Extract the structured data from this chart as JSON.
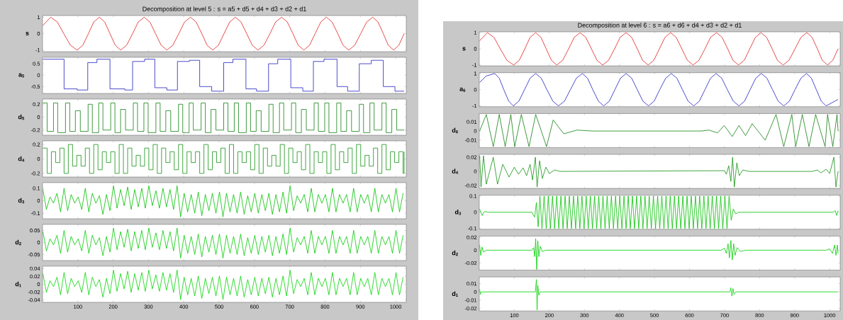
{
  "chart_data": [
    {
      "type": "line",
      "title": "Decomposition at level 5 : s = a5 + d5 + d4 + d3 + d2 + d1",
      "ylabel": "s",
      "color": "#e02020",
      "xlim": [
        0,
        1030
      ],
      "ylim": [
        -1.1,
        1.1
      ],
      "xticks": [
        100,
        200,
        300,
        400,
        500,
        600,
        700,
        800,
        900,
        1000
      ],
      "yticks": [
        -1,
        0,
        1
      ],
      "tick_labels": "y",
      "x": [
        1,
        23,
        42,
        60,
        79,
        98,
        114,
        130,
        145,
        161,
        176,
        191,
        206,
        221,
        238,
        255,
        271,
        288,
        304,
        320,
        336,
        352,
        369,
        386,
        402,
        419,
        435,
        451,
        466,
        482,
        498,
        514,
        530,
        546,
        562,
        578,
        594,
        610,
        627,
        644,
        660,
        677,
        693,
        709,
        724,
        740,
        756,
        772,
        788,
        804,
        820,
        836,
        851,
        867,
        884,
        901,
        918,
        935,
        950,
        965,
        979,
        994,
        1009,
        1024
      ],
      "values": [
        0.5,
        1,
        0.71,
        0,
        -0.71,
        -1,
        -0.71,
        0,
        0.71,
        1,
        0.71,
        0,
        -0.71,
        -1,
        -0.71,
        0,
        0.71,
        1,
        0.71,
        0,
        -0.71,
        -1,
        -0.71,
        0,
        0.71,
        1,
        0.71,
        0,
        -0.71,
        -1,
        -0.71,
        0,
        0.71,
        1,
        0.71,
        0,
        -0.71,
        -1,
        -0.71,
        0,
        0.71,
        1,
        0.71,
        0,
        -0.71,
        -1,
        -0.71,
        0,
        0.71,
        1,
        0.71,
        0,
        -0.71,
        -1,
        -0.71,
        0,
        0.71,
        1,
        0.71,
        0,
        -0.71,
        -1,
        -0.71,
        0
      ]
    },
    {
      "type": "step",
      "ylabel": "a$_{5}$",
      "color": "#2020c0",
      "xlim": [
        0,
        1030
      ],
      "ylim": [
        -0.8,
        0.78
      ],
      "xticks": [
        100,
        200,
        300,
        400,
        500,
        600,
        700,
        800,
        900,
        1000
      ],
      "yticks": [
        -0.5,
        0,
        0.5
      ],
      "tick_labels": "y",
      "x": [
        1,
        61,
        98,
        128,
        154,
        191,
        233,
        255,
        289,
        318,
        352,
        382,
        416,
        445,
        479,
        513,
        539,
        576,
        606,
        640,
        666,
        703,
        737,
        767,
        797,
        834,
        864,
        897,
        931,
        965,
        998,
        1024
      ],
      "values": [
        0.7,
        -0.6,
        -0.65,
        0.55,
        0.7,
        -0.6,
        -0.65,
        0.6,
        0.7,
        -0.55,
        -0.65,
        0.6,
        0.65,
        -0.5,
        -0.7,
        0.55,
        0.7,
        -0.6,
        -0.7,
        0.5,
        0.7,
        -0.55,
        -0.7,
        0.6,
        0.7,
        -0.5,
        -0.7,
        0.5,
        0.65,
        -0.5,
        -0.7,
        -0.7
      ]
    },
    {
      "type": "step",
      "ylabel": "d$_{5}$",
      "color": "#108010",
      "xlim": [
        0,
        1030
      ],
      "ylim": [
        -0.28,
        0.28
      ],
      "xticks": [
        100,
        200,
        300,
        400,
        500,
        600,
        700,
        800,
        900,
        1000
      ],
      "yticks": [
        -0.2,
        0,
        0.2
      ],
      "tick_labels": "y",
      "x": [
        1,
        13,
        31,
        43,
        65,
        77,
        93,
        107,
        129,
        141,
        159,
        171,
        193,
        205,
        221,
        235,
        257,
        269,
        287,
        299,
        321,
        333,
        349,
        363,
        385,
        397,
        415,
        427,
        449,
        461,
        477,
        491,
        513,
        525,
        543,
        555,
        577,
        589,
        605,
        619,
        641,
        653,
        671,
        683,
        705,
        717,
        733,
        747,
        769,
        781,
        799,
        811,
        833,
        845,
        861,
        875,
        897,
        909,
        927,
        939,
        961,
        973,
        989,
        1003,
        1024
      ],
      "values": [
        0.22,
        -0.22,
        0.22,
        -0.24,
        0.22,
        -0.22,
        0.1,
        -0.22,
        0.2,
        -0.24,
        0.22,
        -0.2,
        0.22,
        -0.24,
        0.12,
        -0.2,
        0.22,
        -0.22,
        0.22,
        -0.24,
        0.22,
        -0.22,
        0.1,
        -0.22,
        0.2,
        -0.24,
        0.22,
        -0.2,
        0.22,
        -0.24,
        0.12,
        -0.2,
        0.22,
        -0.22,
        0.22,
        -0.24,
        0.22,
        -0.22,
        0.1,
        -0.22,
        0.2,
        -0.24,
        0.22,
        -0.2,
        0.22,
        -0.24,
        0.12,
        -0.2,
        0.22,
        -0.22,
        0.22,
        -0.24,
        0.22,
        -0.22,
        0.1,
        -0.22,
        0.2,
        -0.24,
        0.22,
        -0.2,
        0.22,
        -0.24,
        0.12,
        -0.2,
        -0.2
      ]
    },
    {
      "type": "step",
      "ylabel": "d$_{4}$",
      "color": "#109010",
      "xlim": [
        0,
        1030
      ],
      "ylim": [
        -0.25,
        0.25
      ],
      "xticks": [
        100,
        200,
        300,
        400,
        500,
        600,
        700,
        800,
        900,
        1000
      ],
      "yticks": [
        -0.2,
        0,
        0.2
      ],
      "tick_labels": "y",
      "x": [
        1,
        13,
        25,
        37,
        49,
        61,
        73,
        85,
        97,
        109,
        121,
        133,
        145,
        157,
        169,
        181,
        193,
        205,
        217,
        229,
        241,
        253,
        265,
        277,
        289,
        301,
        313,
        325,
        337,
        349,
        361,
        373,
        385,
        397,
        409,
        421,
        433,
        445,
        457,
        469,
        481,
        493,
        505,
        517,
        529,
        541,
        553,
        565,
        577,
        589,
        601,
        613,
        625,
        637,
        649,
        661,
        673,
        685,
        697,
        709,
        721,
        733,
        745,
        757,
        769,
        781,
        793,
        805,
        817,
        829,
        841,
        853,
        865,
        877,
        889,
        901,
        913,
        925,
        937,
        949,
        961,
        973,
        985,
        997,
        1009,
        1021,
        1024
      ],
      "values": [
        0.15,
        -0.2,
        0.1,
        -0.05,
        0.15,
        -0.2,
        0.2,
        -0.1,
        0.05,
        -0.1,
        0.15,
        -0.2,
        0.2,
        -0.15,
        0.1,
        -0.05,
        0.1,
        -0.2,
        0.2,
        -0.2,
        0.15,
        -0.1,
        0.05,
        -0.1,
        0.15,
        -0.15,
        0.2,
        -0.2,
        0.15,
        -0.05,
        0.1,
        -0.15,
        0.2,
        -0.2,
        0.1,
        -0.05,
        0.1,
        -0.2,
        0.2,
        -0.15,
        0.1,
        -0.05,
        0.15,
        -0.2,
        0.2,
        -0.2,
        0.1,
        -0.05,
        0.1,
        -0.15,
        0.2,
        -0.2,
        0.15,
        -0.1,
        0.05,
        -0.1,
        0.2,
        -0.2,
        0.15,
        -0.05,
        0.1,
        -0.15,
        0.2,
        -0.2,
        0.1,
        -0.05,
        0.1,
        -0.2,
        0.2,
        -0.15,
        0.1,
        -0.05,
        0.15,
        -0.2,
        0.2,
        -0.1,
        0.05,
        -0.1,
        0.15,
        -0.2,
        0.2,
        -0.15,
        0.1,
        -0.05,
        0.1,
        -0.2,
        0.1
      ]
    },
    {
      "type": "line",
      "ylabel": "d$_{3}$",
      "color": "#00c000",
      "xlim": [
        0,
        1030
      ],
      "ylim": [
        -0.145,
        0.145
      ],
      "xticks": [
        100,
        200,
        300,
        400,
        500,
        600,
        700,
        800,
        900,
        1000
      ],
      "yticks": [
        -0.1,
        0,
        0.1
      ],
      "tick_labels": "y",
      "x": [
        1,
        11,
        21,
        31,
        41,
        51,
        61,
        71,
        81,
        91,
        101,
        111,
        121,
        131,
        141,
        151,
        161,
        171,
        181,
        191,
        201,
        211,
        221,
        231,
        241,
        251,
        261,
        271,
        281,
        291,
        301,
        311,
        321,
        331,
        341,
        351,
        361,
        371,
        381,
        391,
        401,
        411,
        421,
        431,
        441,
        451,
        461,
        471,
        481,
        491,
        501,
        511,
        521,
        531,
        541,
        551,
        561,
        571,
        581,
        591,
        601,
        611,
        621,
        631,
        641,
        651,
        661,
        671,
        681,
        691,
        701,
        711,
        721,
        731,
        741,
        751,
        761,
        771,
        781,
        791,
        801,
        811,
        821,
        831,
        841,
        851,
        861,
        871,
        881,
        891,
        901,
        911,
        921,
        931,
        941,
        951,
        961,
        971,
        981,
        991,
        1001,
        1011,
        1021
      ],
      "values": [
        0.09,
        -0.07,
        0.03,
        -0.02,
        0.06,
        -0.09,
        0.1,
        -0.08,
        0.05,
        -0.02,
        0.03,
        -0.07,
        0.1,
        -0.09,
        0.06,
        -0.02,
        0.04,
        -0.11,
        0.05,
        -0.08,
        0.12,
        -0.06,
        0.09,
        -0.04,
        0.11,
        -0.07,
        0.09,
        -0.05,
        0.1,
        -0.06,
        0.12,
        -0.04,
        0.08,
        -0.06,
        0.1,
        -0.05,
        0.09,
        -0.07,
        0.12,
        -0.13,
        0.06,
        -0.09,
        0.05,
        -0.1,
        0.07,
        -0.12,
        0.05,
        -0.08,
        0.06,
        -0.1,
        0.07,
        -0.13,
        0.06,
        -0.09,
        0.05,
        -0.1,
        0.07,
        -0.11,
        0.04,
        -0.09,
        0.06,
        -0.1,
        0.05,
        -0.08,
        0.06,
        -0.11,
        0.05,
        -0.09,
        0.07,
        -0.1,
        0.12,
        -0.08,
        0.04,
        -0.02,
        0.05,
        -0.09,
        0.1,
        -0.09,
        0.05,
        -0.02,
        0.05,
        -0.09,
        0.1,
        -0.09,
        0.05,
        -0.02,
        0.05,
        -0.09,
        0.1,
        -0.09,
        0.05,
        -0.02,
        0.05,
        -0.09,
        0.1,
        -0.09,
        0.05,
        -0.02,
        0.05,
        -0.09,
        0.1,
        -0.09,
        0.06
      ]
    },
    {
      "type": "line",
      "ylabel": "d$_{2}$",
      "color": "#00cc00",
      "xlim": [
        0,
        1030
      ],
      "ylim": [
        -0.075,
        0.075
      ],
      "xticks": [
        100,
        200,
        300,
        400,
        500,
        600,
        700,
        800,
        900,
        1000
      ],
      "yticks": [
        -0.05,
        0,
        0.05
      ],
      "tick_labels": "y",
      "x": [
        1,
        11,
        21,
        31,
        41,
        51,
        61,
        71,
        81,
        91,
        101,
        111,
        121,
        131,
        141,
        151,
        161,
        171,
        181,
        191,
        201,
        211,
        221,
        231,
        241,
        251,
        261,
        271,
        281,
        291,
        301,
        311,
        321,
        331,
        341,
        351,
        361,
        371,
        381,
        391,
        401,
        411,
        421,
        431,
        441,
        451,
        461,
        471,
        481,
        491,
        501,
        511,
        521,
        531,
        541,
        551,
        561,
        571,
        581,
        591,
        601,
        611,
        621,
        631,
        641,
        651,
        661,
        671,
        681,
        691,
        701,
        711,
        721,
        731,
        741,
        751,
        761,
        771,
        781,
        791,
        801,
        811,
        821,
        831,
        841,
        851,
        861,
        871,
        881,
        891,
        901,
        911,
        921,
        931,
        941,
        951,
        961,
        971,
        981,
        991,
        1001,
        1011,
        1021
      ],
      "values": [
        0.045,
        -0.035,
        0.015,
        -0.01,
        0.03,
        -0.045,
        0.05,
        -0.04,
        0.025,
        -0.01,
        0.015,
        -0.035,
        0.05,
        -0.045,
        0.03,
        -0.01,
        0.02,
        -0.055,
        0.025,
        -0.04,
        0.06,
        -0.03,
        0.045,
        -0.02,
        0.055,
        -0.035,
        0.045,
        -0.025,
        0.05,
        -0.03,
        0.06,
        -0.02,
        0.04,
        -0.03,
        0.05,
        -0.025,
        0.045,
        -0.035,
        0.06,
        -0.065,
        0.03,
        -0.045,
        0.025,
        -0.05,
        0.035,
        -0.06,
        0.025,
        -0.04,
        0.03,
        -0.05,
        0.035,
        -0.065,
        0.03,
        -0.045,
        0.025,
        -0.05,
        0.035,
        -0.055,
        0.02,
        -0.045,
        0.03,
        -0.05,
        0.025,
        -0.04,
        0.03,
        -0.055,
        0.025,
        -0.045,
        0.035,
        -0.05,
        0.06,
        -0.04,
        0.02,
        -0.01,
        0.025,
        -0.045,
        0.05,
        -0.045,
        0.025,
        -0.01,
        0.025,
        -0.045,
        0.05,
        -0.045,
        0.025,
        -0.01,
        0.025,
        -0.045,
        0.05,
        -0.045,
        0.025,
        -0.01,
        0.025,
        -0.045,
        0.05,
        -0.045,
        0.025,
        -0.01,
        0.025,
        -0.045,
        0.05,
        -0.045,
        0.03
      ]
    },
    {
      "type": "line",
      "ylabel": "d$_{1}$",
      "color": "#00d400",
      "xlim": [
        0,
        1030
      ],
      "ylim": [
        -0.046,
        0.046
      ],
      "xticks": [
        100,
        200,
        300,
        400,
        500,
        600,
        700,
        800,
        900,
        1000
      ],
      "yticks": [
        -0.04,
        -0.02,
        0,
        0.02,
        0.04
      ],
      "x": [
        1,
        11,
        21,
        31,
        41,
        51,
        61,
        71,
        81,
        91,
        101,
        111,
        121,
        131,
        141,
        151,
        161,
        171,
        181,
        191,
        201,
        211,
        221,
        231,
        241,
        251,
        261,
        271,
        281,
        291,
        301,
        311,
        321,
        331,
        341,
        351,
        361,
        371,
        381,
        391,
        401,
        411,
        421,
        431,
        441,
        451,
        461,
        471,
        481,
        491,
        501,
        511,
        521,
        531,
        541,
        551,
        561,
        571,
        581,
        591,
        601,
        611,
        621,
        631,
        641,
        651,
        661,
        671,
        681,
        691,
        701,
        711,
        721,
        731,
        741,
        751,
        761,
        771,
        781,
        791,
        801,
        811,
        821,
        831,
        841,
        851,
        861,
        871,
        881,
        891,
        901,
        911,
        921,
        931,
        941,
        951,
        961,
        971,
        981,
        991,
        1001,
        1011,
        1021
      ],
      "values": [
        0.027,
        -0.021,
        0.009,
        -0.006,
        0.018,
        -0.027,
        0.03,
        -0.024,
        0.015,
        -0.006,
        0.009,
        -0.021,
        0.03,
        -0.027,
        0.018,
        -0.006,
        0.012,
        -0.033,
        0.015,
        -0.024,
        0.036,
        -0.018,
        0.027,
        -0.012,
        0.033,
        -0.021,
        0.027,
        -0.015,
        0.03,
        -0.018,
        0.036,
        -0.012,
        0.024,
        -0.018,
        0.03,
        -0.015,
        0.027,
        -0.021,
        0.036,
        -0.039,
        0.018,
        -0.027,
        0.015,
        -0.03,
        0.021,
        -0.036,
        0.015,
        -0.024,
        0.018,
        -0.03,
        0.021,
        -0.039,
        0.018,
        -0.027,
        0.015,
        -0.03,
        0.021,
        -0.033,
        0.012,
        -0.027,
        0.018,
        -0.03,
        0.015,
        -0.024,
        0.018,
        -0.033,
        0.015,
        -0.027,
        0.021,
        -0.03,
        0.036,
        -0.024,
        0.012,
        -0.006,
        0.015,
        -0.027,
        0.03,
        -0.027,
        0.015,
        -0.006,
        0.015,
        -0.027,
        0.03,
        -0.027,
        0.015,
        -0.006,
        0.015,
        -0.027,
        0.03,
        -0.027,
        0.015,
        -0.006,
        0.015,
        -0.027,
        0.03,
        -0.027,
        0.015,
        -0.006,
        0.015,
        -0.027,
        0.03,
        -0.027,
        0.018
      ]
    },
    {
      "type": "line",
      "title": "Decomposition at level 6 : s = a6 + d6 + d4 + d3 + d2 + d1",
      "ylabel": "s",
      "color": "#e02020",
      "xlim": [
        0,
        1030
      ],
      "ylim": [
        -1.05,
        1.05
      ],
      "xticks": [
        100,
        200,
        300,
        400,
        500,
        600,
        700,
        800,
        900,
        1000
      ],
      "yticks": [
        -1,
        0,
        1
      ],
      "tick_labels": "y",
      "x": [
        1,
        23,
        42,
        60,
        79,
        98,
        114,
        130,
        145,
        161,
        176,
        191,
        206,
        221,
        238,
        255,
        271,
        288,
        304,
        320,
        336,
        352,
        369,
        386,
        402,
        419,
        435,
        451,
        466,
        482,
        498,
        514,
        530,
        546,
        562,
        578,
        594,
        610,
        627,
        644,
        660,
        677,
        693,
        709,
        724,
        740,
        756,
        772,
        788,
        804,
        820,
        836,
        851,
        867,
        884,
        901,
        918,
        935,
        950,
        965,
        979,
        994,
        1009,
        1024
      ],
      "values": [
        0.5,
        1,
        0.71,
        0,
        -0.71,
        -1,
        -0.71,
        0,
        0.71,
        1,
        0.71,
        0,
        -0.71,
        -1,
        -0.71,
        0,
        0.71,
        1,
        0.71,
        0,
        -0.71,
        -1,
        -0.71,
        0,
        0.71,
        1,
        0.71,
        0,
        -0.71,
        -1,
        -0.71,
        0,
        0.71,
        1,
        0.71,
        0,
        -0.71,
        -1,
        -0.71,
        0,
        0.71,
        1,
        0.71,
        0,
        -0.71,
        -1,
        -0.71,
        0,
        0.71,
        1,
        0.71,
        0,
        -0.71,
        -1,
        -0.71,
        0,
        0.71,
        1,
        0.71,
        0,
        -0.71,
        -1,
        -0.71,
        0
      ]
    },
    {
      "type": "line",
      "ylabel": "a$_{6}$",
      "color": "#2020c0",
      "xlim": [
        0,
        1030
      ],
      "ylim": [
        -1.05,
        1.05
      ],
      "xticks": [
        100,
        200,
        300,
        400,
        500,
        600,
        700,
        800,
        900,
        1000
      ],
      "yticks": [
        -1,
        0,
        1
      ],
      "tick_labels": "y",
      "x": [
        1,
        20,
        44,
        57,
        70,
        84,
        97,
        113,
        129,
        145,
        161,
        177,
        193,
        210,
        226,
        243,
        260,
        277,
        294,
        309,
        324,
        340,
        355,
        371,
        387,
        403,
        419,
        435,
        451,
        467,
        483,
        499,
        515,
        532,
        548,
        564,
        580,
        596,
        612,
        628,
        644,
        660,
        676,
        692,
        708,
        725,
        741,
        757,
        773,
        789,
        805,
        821,
        837,
        853,
        869,
        885,
        901,
        918,
        934,
        948,
        962,
        976,
        990,
        1024
      ],
      "values": [
        0.45,
        0.85,
        1,
        0.71,
        0,
        -0.71,
        -1,
        -0.71,
        0,
        0.71,
        1,
        0.71,
        0,
        -0.71,
        -1,
        -0.71,
        0,
        0.71,
        1,
        0.71,
        0,
        -0.71,
        -1,
        -0.71,
        0,
        0.71,
        1,
        0.71,
        0,
        -0.71,
        -1,
        -0.71,
        0,
        0.71,
        1,
        0.71,
        0,
        -0.71,
        -1,
        -0.71,
        0,
        0.71,
        1,
        0.71,
        0,
        -0.71,
        -1,
        -0.71,
        0,
        0.71,
        1,
        0.71,
        0,
        -0.71,
        -1,
        -0.71,
        0,
        0.71,
        1,
        0.71,
        0,
        -0.71,
        -1,
        -0.6
      ]
    },
    {
      "type": "line",
      "ylabel": "d$_{6}$",
      "color": "#108010",
      "xlim": [
        0,
        1030
      ],
      "ylim": [
        -0.018,
        0.019
      ],
      "xticks": [
        100,
        200,
        300,
        400,
        500,
        600,
        700,
        800,
        900,
        1000
      ],
      "yticks": [
        -0.01,
        0,
        0.01
      ],
      "tick_labels": "y",
      "x": [
        1,
        20,
        40,
        57,
        74,
        90,
        101,
        120,
        142,
        161,
        192,
        211,
        241,
        279,
        320,
        635,
        655,
        680,
        699,
        722,
        741,
        760,
        779,
        816,
        847,
        869,
        892,
        903,
        922,
        941,
        960,
        987,
        994,
        1009,
        1021,
        1024
      ],
      "values": [
        0,
        0.018,
        -0.017,
        0.018,
        -0.017,
        0.018,
        -0.017,
        0.018,
        -0.017,
        0.018,
        -0.017,
        0.012,
        -0.003,
        0.001,
        0,
        0,
        0.001,
        -0.002,
        0.006,
        -0.006,
        0.006,
        -0.005,
        0.008,
        -0.01,
        0.018,
        -0.017,
        0.018,
        -0.017,
        0.018,
        -0.017,
        0.018,
        -0.017,
        0.018,
        -0.017,
        0.018,
        0
      ]
    },
    {
      "type": "line",
      "ylabel": "d$_{4}$",
      "color": "#109010",
      "xlim": [
        0,
        1030
      ],
      "ylim": [
        -0.024,
        0.024
      ],
      "xticks": [
        100,
        200,
        300,
        400,
        500,
        600,
        700,
        800,
        900,
        1000
      ],
      "yticks": [
        -0.02,
        0,
        0.02
      ],
      "tick_labels": "y",
      "x": [
        1,
        5,
        12,
        20,
        40,
        52,
        67,
        85,
        100,
        112,
        125,
        135,
        145,
        152,
        160,
        165,
        172,
        180,
        190,
        200,
        215,
        230,
        700,
        705,
        712,
        718,
        723,
        728,
        735,
        742,
        752,
        770,
        950,
        965,
        975,
        990,
        1000,
        1012,
        1018,
        1024
      ],
      "values": [
        0.022,
        -0.022,
        0.022,
        -0.018,
        0.02,
        -0.018,
        0.01,
        -0.008,
        0.006,
        -0.004,
        0.005,
        -0.006,
        0.01,
        -0.012,
        0.02,
        -0.022,
        0.015,
        -0.01,
        0.006,
        -0.003,
        0.002,
        0,
        0.001,
        -0.004,
        0.008,
        -0.014,
        0.02,
        -0.022,
        0.012,
        -0.006,
        0.002,
        0,
        0,
        0.002,
        -0.002,
        0.003,
        -0.003,
        0.02,
        -0.022,
        0
      ]
    },
    {
      "type": "line",
      "ylabel": "d$_{3}$",
      "color": "#00c000",
      "xlim": [
        0,
        1030
      ],
      "ylim": [
        -0.105,
        0.105
      ],
      "xticks": [
        100,
        200,
        300,
        400,
        500,
        600,
        700,
        800,
        900,
        1000
      ],
      "yticks": [
        -0.1,
        0,
        0.1
      ],
      "tick_labels": "y",
      "x": [
        1,
        8,
        15,
        25,
        150,
        158,
        163,
        168,
        173,
        179,
        185,
        191,
        197,
        203,
        209,
        215,
        221,
        227,
        233,
        239,
        245,
        251,
        257,
        263,
        269,
        275,
        281,
        287,
        293,
        299,
        305,
        311,
        317,
        323,
        329,
        335,
        341,
        347,
        353,
        359,
        365,
        371,
        377,
        383,
        389,
        395,
        401,
        407,
        413,
        419,
        425,
        431,
        437,
        443,
        449,
        455,
        461,
        467,
        473,
        479,
        485,
        491,
        497,
        503,
        509,
        515,
        521,
        527,
        533,
        539,
        545,
        551,
        557,
        563,
        569,
        575,
        581,
        587,
        593,
        599,
        605,
        611,
        617,
        623,
        629,
        635,
        641,
        647,
        653,
        659,
        665,
        671,
        677,
        683,
        689,
        695,
        701,
        707,
        713,
        719,
        725,
        732,
        740,
        1010,
        1016,
        1020,
        1024
      ],
      "values": [
        0.02,
        -0.02,
        0.005,
        0,
        0,
        -0.03,
        0.06,
        -0.09,
        0.1,
        -0.1,
        0.1,
        -0.1,
        0.1,
        -0.1,
        0.1,
        -0.1,
        0.1,
        -0.1,
        0.1,
        -0.1,
        0.1,
        -0.1,
        0.1,
        -0.1,
        0.1,
        -0.1,
        0.1,
        -0.1,
        0.1,
        -0.1,
        0.1,
        -0.1,
        0.1,
        -0.1,
        0.1,
        -0.1,
        0.1,
        -0.1,
        0.1,
        -0.1,
        0.1,
        -0.1,
        0.1,
        -0.1,
        0.1,
        -0.1,
        0.1,
        -0.1,
        0.1,
        -0.1,
        0.1,
        -0.1,
        0.1,
        -0.1,
        0.1,
        -0.1,
        0.1,
        -0.1,
        0.1,
        -0.1,
        0.1,
        -0.1,
        0.1,
        -0.1,
        0.1,
        -0.1,
        0.1,
        -0.1,
        0.1,
        -0.1,
        0.1,
        -0.1,
        0.1,
        -0.1,
        0.1,
        -0.1,
        0.1,
        -0.1,
        0.1,
        -0.1,
        0.1,
        -0.1,
        0.1,
        -0.1,
        0.1,
        -0.1,
        0.1,
        -0.1,
        0.1,
        -0.1,
        0.1,
        -0.1,
        0.1,
        -0.1,
        0.1,
        -0.1,
        0.1,
        -0.1,
        0.1,
        -0.05,
        0.02,
        -0.01,
        0,
        0,
        0.01,
        -0.02,
        0.01
      ]
    },
    {
      "type": "line",
      "ylabel": "d$_{2}$",
      "color": "#00cc00",
      "xlim": [
        0,
        1030
      ],
      "ylim": [
        -0.031,
        0.022
      ],
      "xticks": [
        100,
        200,
        300,
        400,
        500,
        600,
        700,
        800,
        900,
        1000
      ],
      "yticks": [
        -0.02,
        0,
        0.02
      ],
      "tick_labels": "y",
      "x": [
        1,
        4,
        8,
        12,
        20,
        150,
        155,
        158,
        161,
        164,
        167,
        170,
        174,
        180,
        190,
        690,
        700,
        705,
        710,
        714,
        718,
        722,
        726,
        730,
        736,
        745,
        760,
        990,
        1000,
        1008,
        1014,
        1018,
        1022,
        1024
      ],
      "values": [
        0.008,
        -0.008,
        0.005,
        -0.003,
        0,
        0,
        0.004,
        -0.01,
        0.018,
        -0.03,
        0.015,
        -0.01,
        0.006,
        -0.002,
        0,
        0,
        0.003,
        -0.005,
        0.01,
        -0.012,
        0.015,
        -0.015,
        0.01,
        -0.008,
        0.004,
        -0.002,
        0,
        0,
        0.002,
        -0.005,
        0.008,
        -0.008,
        0.008,
        -0.005
      ]
    },
    {
      "type": "line",
      "ylabel": "d$_{1}$",
      "color": "#00d400",
      "xlim": [
        0,
        1030
      ],
      "ylim": [
        -0.023,
        0.018
      ],
      "xticks": [
        100,
        200,
        300,
        400,
        500,
        600,
        700,
        800,
        900,
        1000
      ],
      "yticks": [
        -0.02,
        -0.01,
        0,
        0.01
      ],
      "x": [
        1,
        3,
        6,
        160,
        163,
        165,
        167,
        170,
        174,
        715,
        718,
        721,
        724,
        727,
        732,
        1024
      ],
      "values": [
        0.003,
        -0.003,
        0,
        0,
        0.015,
        -0.022,
        0.008,
        -0.004,
        0,
        0,
        0.005,
        -0.005,
        0.004,
        -0.003,
        0,
        0
      ]
    }
  ]
}
